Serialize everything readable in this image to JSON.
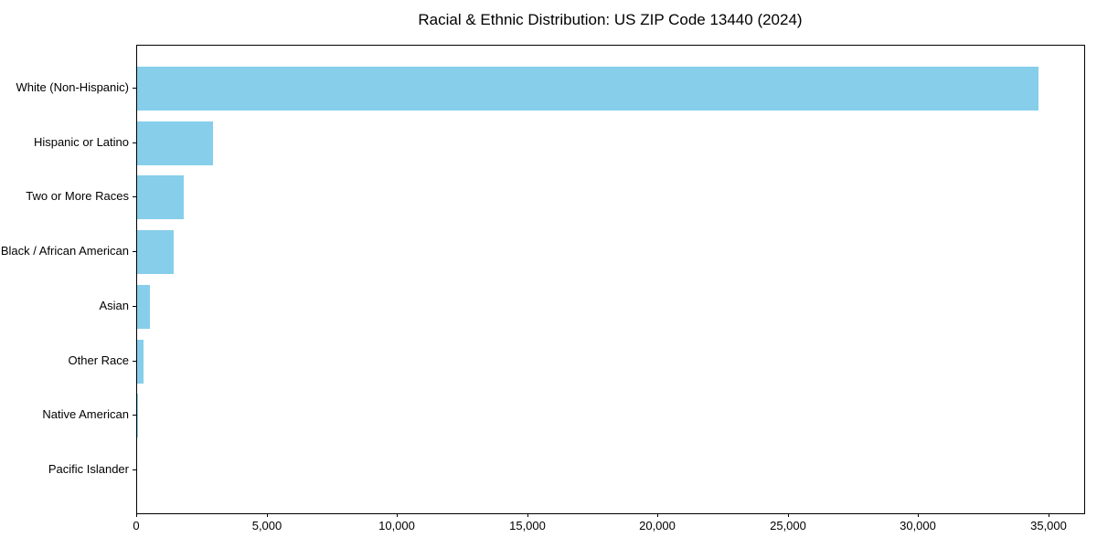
{
  "chart_data": {
    "type": "bar",
    "orientation": "horizontal",
    "title": "Racial & Ethnic Distribution: US ZIP Code 13440 (2024)",
    "categories": [
      "White (Non-Hispanic)",
      "Hispanic or Latino",
      "Two or More Races",
      "Black / African American",
      "Asian",
      "Other Race",
      "Native American",
      "Pacific Islander"
    ],
    "values": [
      34600,
      2900,
      1800,
      1400,
      480,
      230,
      50,
      10
    ],
    "xlabel": "",
    "ylabel": "",
    "xlim": [
      0,
      36350
    ],
    "x_ticks": [
      0,
      5000,
      10000,
      15000,
      20000,
      25000,
      30000,
      35000
    ],
    "x_tick_labels": [
      "0",
      "5,000",
      "10,000",
      "15,000",
      "20,000",
      "25,000",
      "30,000",
      "35,000"
    ],
    "bar_color": "#87CEEB",
    "grid": false,
    "legend_position": "none"
  },
  "colors": {
    "background": "#ffffff",
    "bar": "#87CEEB",
    "axis": "#000000",
    "text": "#000000"
  }
}
